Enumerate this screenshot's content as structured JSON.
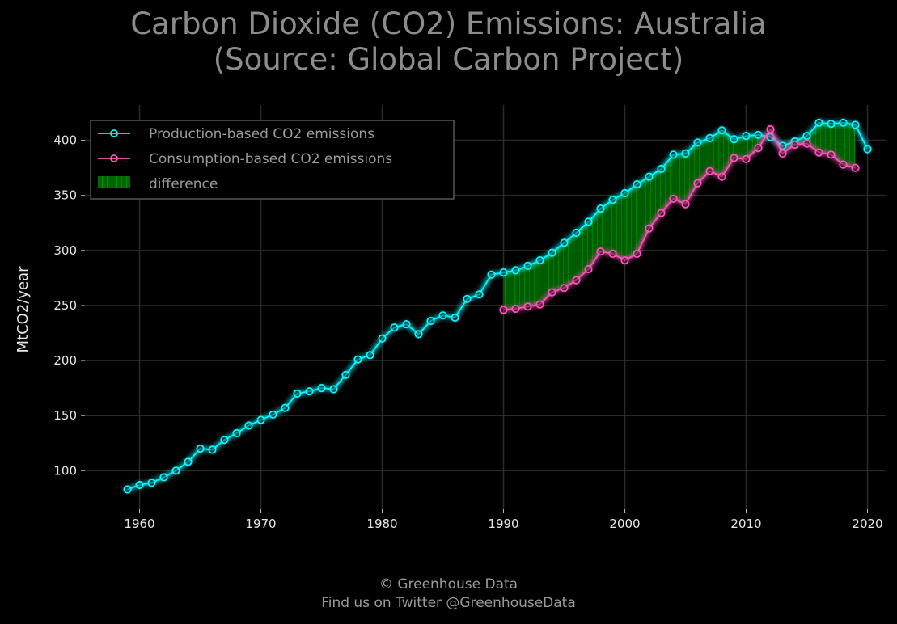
{
  "title_lines": [
    "Carbon Dioxide (CO2) Emissions: Australia",
    "(Source: Global Carbon Project)"
  ],
  "credit_lines": [
    "© Greenhouse Data",
    "Find us on Twitter @GreenhouseData"
  ],
  "colors": {
    "background": "#000000",
    "production": "#08F7FE",
    "consumption": "#FE53BB",
    "difference": "#008000",
    "grid": "#2A3459",
    "text": "#e6e6e6",
    "title": "#8c8c8c"
  },
  "chart_data": {
    "type": "line",
    "title": "Carbon Dioxide (CO2) Emissions: Australia (Source: Global Carbon Project)",
    "xlabel": "",
    "ylabel": "MtCO2/year",
    "xlim": [
      1955.5,
      2021.5
    ],
    "ylim": [
      65,
      432
    ],
    "xticks": [
      1960,
      1970,
      1980,
      1990,
      2000,
      2010,
      2020
    ],
    "yticks": [
      100,
      150,
      200,
      250,
      300,
      350,
      400
    ],
    "grid": true,
    "legend_position": "top-left",
    "series": [
      {
        "name": "Production-based CO2 emissions",
        "x": [
          1959,
          1960,
          1961,
          1962,
          1963,
          1964,
          1965,
          1966,
          1967,
          1968,
          1969,
          1970,
          1971,
          1972,
          1973,
          1974,
          1975,
          1976,
          1977,
          1978,
          1979,
          1980,
          1981,
          1982,
          1983,
          1984,
          1985,
          1986,
          1987,
          1988,
          1989,
          1990,
          1991,
          1992,
          1993,
          1994,
          1995,
          1996,
          1997,
          1998,
          1999,
          2000,
          2001,
          2002,
          2003,
          2004,
          2005,
          2006,
          2007,
          2008,
          2009,
          2010,
          2011,
          2012,
          2013,
          2014,
          2015,
          2016,
          2017,
          2018,
          2019,
          2020
        ],
        "values": [
          83,
          87,
          89,
          94,
          100,
          108,
          120,
          119,
          128,
          134,
          141,
          146,
          151,
          157,
          170,
          172,
          175,
          174,
          187,
          201,
          205,
          220,
          230,
          233,
          224,
          236,
          241,
          239,
          256,
          260,
          278,
          280,
          282,
          286,
          291,
          298,
          307,
          316,
          326,
          338,
          346,
          352,
          360,
          367,
          374,
          387,
          388,
          398,
          402,
          409,
          401,
          404,
          405,
          403,
          395,
          399,
          404,
          416,
          415,
          416,
          414,
          392
        ]
      },
      {
        "name": "Consumption-based CO2 emissions",
        "x": [
          1990,
          1991,
          1992,
          1993,
          1994,
          1995,
          1996,
          1997,
          1998,
          1999,
          2000,
          2001,
          2002,
          2003,
          2004,
          2005,
          2006,
          2007,
          2008,
          2009,
          2010,
          2011,
          2012,
          2013,
          2014,
          2015,
          2016,
          2017,
          2018,
          2019
        ],
        "values": [
          246,
          247,
          249,
          251,
          262,
          266,
          273,
          283,
          299,
          297,
          291,
          297,
          320,
          334,
          347,
          342,
          361,
          372,
          367,
          384,
          383,
          393,
          410,
          388,
          396,
          397,
          389,
          387,
          378,
          375
        ]
      }
    ],
    "fill_between": {
      "name": "difference",
      "between": [
        "Production-based CO2 emissions",
        "Consumption-based CO2 emissions"
      ]
    }
  }
}
